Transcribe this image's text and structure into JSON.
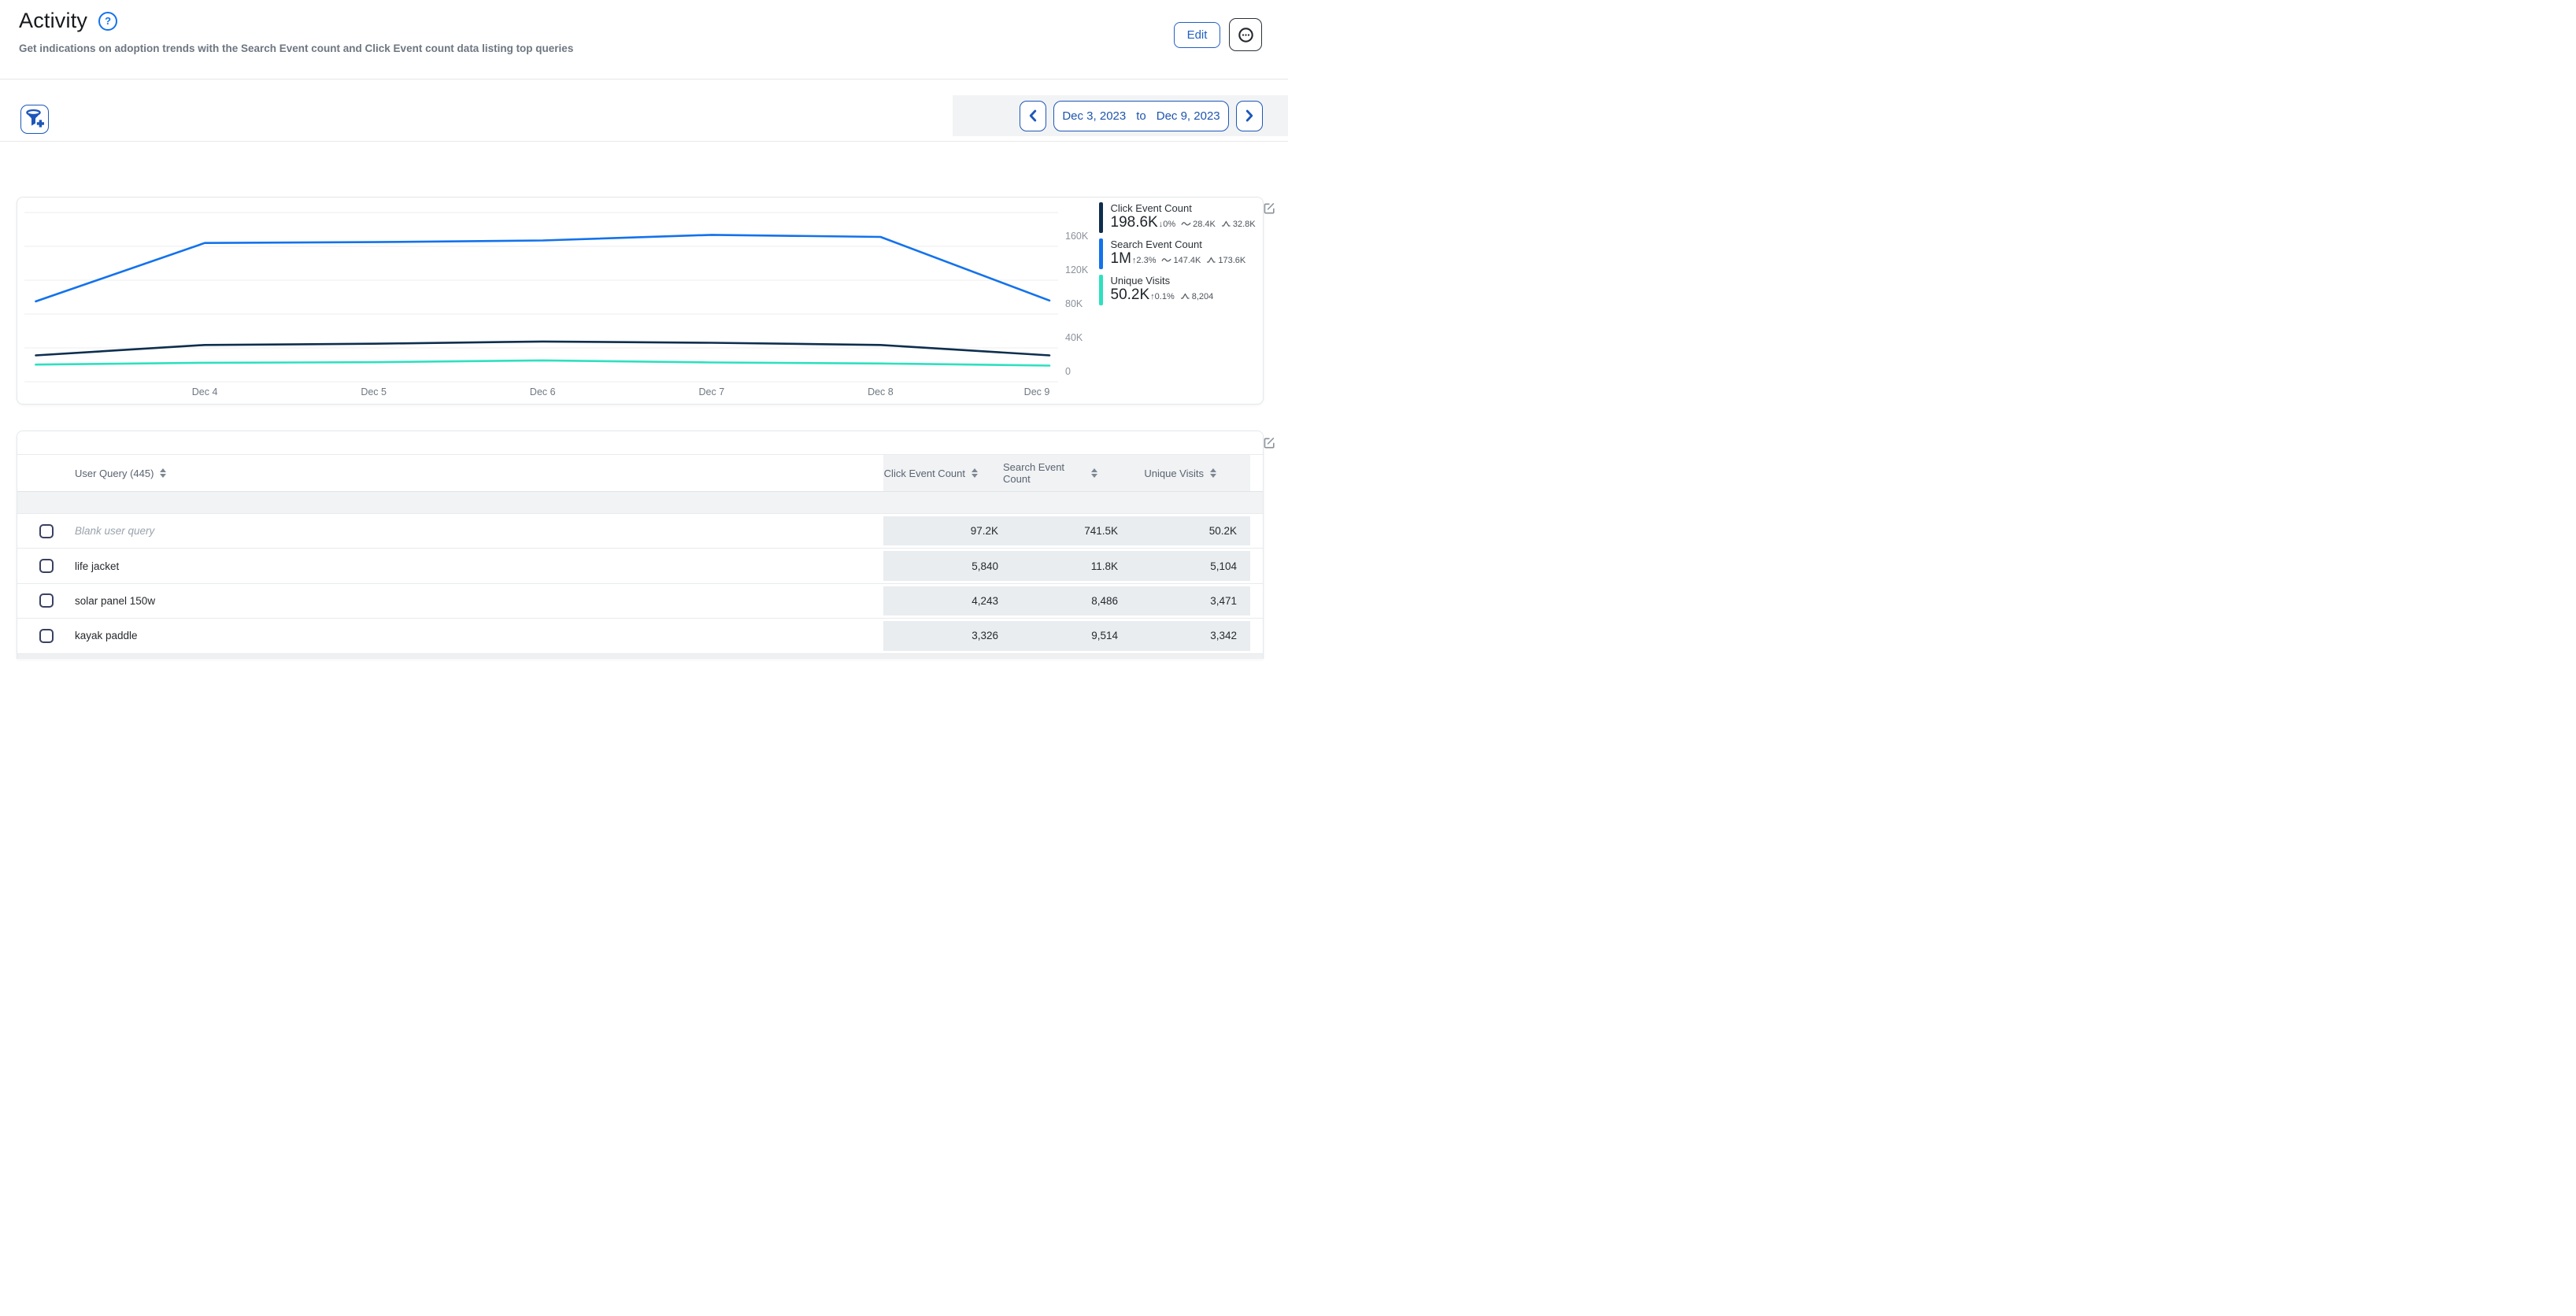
{
  "header": {
    "title": "Activity",
    "subtitle": "Get indications on adoption trends with the Search Event count and Click Event count data listing top queries",
    "edit_label": "Edit"
  },
  "icons": {
    "help": "question-mark-circle",
    "more": "circled-ellipsis",
    "filter": "funnel-plus",
    "previous": "chevron-left",
    "next": "chevron-right",
    "widget_edit": "pencil-square",
    "sort": "up-down-triangles"
  },
  "toolbar": {
    "date_from": "Dec 3, 2023",
    "date_separator": "to",
    "date_to": "Dec 9, 2023"
  },
  "colors": {
    "accent_blue": "#1d57b8",
    "link_blue": "#2160c4",
    "chart_click": "#0E2E4E",
    "chart_search": "#1372EC",
    "chart_unique": "#2EE0C0",
    "grid": "#ececec",
    "numeric_cell_bg": "#e9edf0"
  },
  "chart_data": {
    "type": "line",
    "title": "",
    "xlabel": "",
    "ylabel": "",
    "x": [
      "Dec 3",
      "Dec 4",
      "Dec 5",
      "Dec 6",
      "Dec 7",
      "Dec 8",
      "Dec 9"
    ],
    "x_tick_labels": [
      "Dec 4",
      "Dec 5",
      "Dec 6",
      "Dec 7",
      "Dec 8",
      "Dec 9"
    ],
    "y_tick_labels": [
      "160K",
      "120K",
      "80K",
      "40K",
      "0"
    ],
    "ylim": [
      0,
      200000
    ],
    "grid": true,
    "legend_position": "right",
    "series": [
      {
        "name": "Click Event Count",
        "color": "#0E2E4E",
        "values": [
          21500,
          30000,
          31000,
          32800,
          31800,
          30000,
          21500
        ],
        "total": "198.6K",
        "trend_direction": "down",
        "trend_pct": "0%",
        "average": "28.4K",
        "peak": "32.8K",
        "visual_axis_max": 138000
      },
      {
        "name": "Search Event Count",
        "color": "#1372EC",
        "values": [
          95000,
          164000,
          165000,
          167000,
          173600,
          171200,
          96000
        ],
        "total": "1M",
        "trend_direction": "up",
        "trend_pct": "2.3%",
        "average": "147.4K",
        "peak": "173.6K",
        "visual_axis_max": 200000
      },
      {
        "name": "Unique Visits",
        "color": "#2EE0C0",
        "values": [
          6600,
          7300,
          7500,
          8204,
          7400,
          7000,
          6196
        ],
        "total": "50.2K",
        "trend_direction": "up",
        "trend_pct": "0.1%",
        "average": null,
        "peak": "8,204",
        "visual_axis_max": 65000
      }
    ]
  },
  "table": {
    "query_header": "User Query (445)",
    "columns": [
      "Click Event Count",
      "Search Event Count",
      "Unique Visits"
    ],
    "rows": [
      {
        "query": "Blank user query",
        "italic": true,
        "click": "97.2K",
        "search": "741.5K",
        "unique": "50.2K"
      },
      {
        "query": "life jacket",
        "italic": false,
        "click": "5,840",
        "search": "11.8K",
        "unique": "5,104"
      },
      {
        "query": "solar panel 150w",
        "italic": false,
        "click": "4,243",
        "search": "8,486",
        "unique": "3,471"
      },
      {
        "query": "kayak paddle",
        "italic": false,
        "click": "3,326",
        "search": "9,514",
        "unique": "3,342"
      }
    ]
  }
}
